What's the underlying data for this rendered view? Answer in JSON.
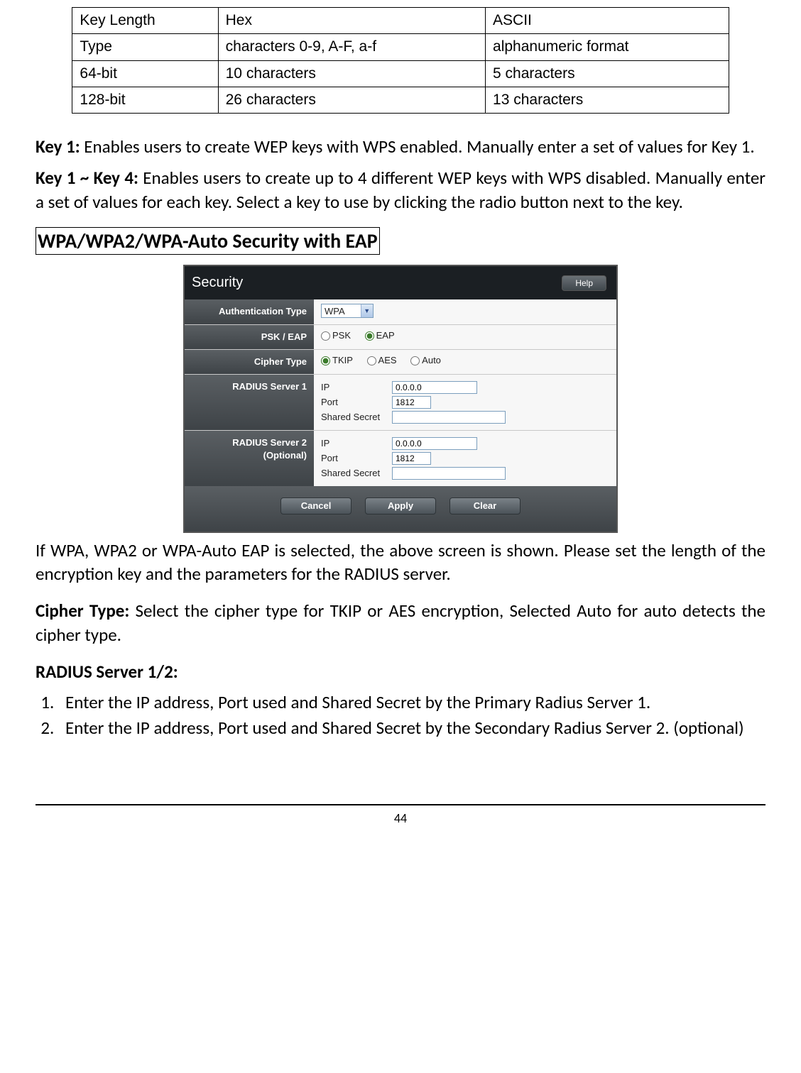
{
  "key_table": {
    "columns": [
      "Key Length",
      "Hex",
      "ASCII"
    ],
    "rows": [
      [
        "Type",
        "characters 0-9, A-F, a-f",
        "alphanumeric format"
      ],
      [
        "64-bit",
        "10 characters",
        "5 characters"
      ],
      [
        "128-bit",
        "26 characters",
        "13 characters"
      ]
    ]
  },
  "text": {
    "key1_bold": "Key 1:",
    "key1_body": " Enables users to create WEP keys with WPS enabled. Manually enter a set of values for Key 1.",
    "key14_bold": "Key 1 ~ Key 4:",
    "key14_body": " Enables users to create up to 4 different WEP keys with WPS disabled. Manually enter a set of values for each key. Select a key to use by clicking the radio button next to the key.",
    "section_title": "WPA/WPA2/WPA-Auto Security with EAP",
    "after_shot": "If WPA, WPA2 or WPA-Auto EAP is selected, the above screen is shown.  Please set the length of the encryption key and the parameters for the RADIUS server.",
    "cipher_bold": "Cipher Type:",
    "cipher_body": " Select the cipher type for TKIP or AES encryption, Selected Auto for auto detects the cipher type.",
    "radius_heading": "RADIUS Server 1/2:",
    "radius_list": [
      "Enter the IP address, Port used and Shared Secret by the Primary Radius Server 1.",
      "Enter the IP address, Port used and Shared Secret by the Secondary Radius Server 2. (optional)"
    ],
    "page_number": "44"
  },
  "shot": {
    "title": "Security",
    "help": "Help",
    "labels": {
      "auth": "Authentication Type",
      "psk_eap": "PSK / EAP",
      "cipher": "Cipher Type",
      "r1": "RADIUS Server 1",
      "r2a": "RADIUS Server 2",
      "r2b": "(Optional)",
      "ip": "IP",
      "port": "Port",
      "secret": "Shared Secret"
    },
    "auth_value": "WPA",
    "psk": "PSK",
    "eap": "EAP",
    "tkip": "TKIP",
    "aes": "AES",
    "auto": "Auto",
    "r1_ip": "0.0.0.0",
    "r1_port": "1812",
    "r1_secret": "",
    "r2_ip": "0.0.0.0",
    "r2_port": "1812",
    "r2_secret": "",
    "btn_cancel": "Cancel",
    "btn_apply": "Apply",
    "btn_clear": "Clear"
  }
}
